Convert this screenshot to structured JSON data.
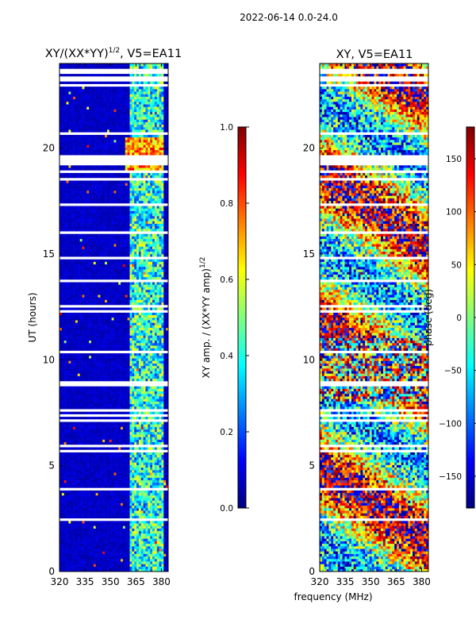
{
  "figure_title": "2022-06-14 0.0-24.0",
  "xlabel_shared": "frequency (MHz)",
  "colors": {
    "jet": [
      "#00007f",
      "#0000ff",
      "#007fff",
      "#00ffff",
      "#7fff7f",
      "#ffff00",
      "#ff7f00",
      "#ff0000",
      "#7f0000"
    ],
    "background": "#ffffff",
    "gap": "#ffffff"
  },
  "chart_data": [
    {
      "type": "heatmap",
      "title": "XY/(XX*YY)^{1/2}, V5=EA11",
      "title_main": "XY/(XX*YY)",
      "title_sup": "1/2",
      "title_suffix": ", V5=EA11",
      "xlabel": "",
      "ylabel": "UT (hours)",
      "xlim": [
        320,
        384
      ],
      "ylim": [
        0,
        24
      ],
      "xticks": [
        320,
        335,
        350,
        365,
        380
      ],
      "yticks": [
        0,
        5,
        10,
        15,
        20
      ],
      "colorbar": {
        "label": "XY amp. / (XX*YY amp)^{1/2}",
        "label_main": "XY amp. / (XX*YY amp)",
        "label_sup": "1/2",
        "range": [
          0.0,
          1.0
        ],
        "ticks": [
          "0.0",
          "0.2",
          "0.4",
          "0.6",
          "0.8",
          "1.0"
        ],
        "tick_values": [
          0.0,
          0.2,
          0.4,
          0.6,
          0.8,
          1.0
        ]
      },
      "description": "amplitude mostly near 0 (dark blue); elevated 0.2-0.6 for frequencies 362-381 MHz; bright patch ~0.6-0.9 near 19-20 h at 360-380 MHz"
    },
    {
      "type": "heatmap",
      "title": "XY, V5=EA11",
      "xlabel": "frequency (MHz)",
      "ylabel": "",
      "xlim": [
        320,
        384
      ],
      "ylim": [
        0,
        24
      ],
      "xticks": [
        320,
        335,
        350,
        365,
        380
      ],
      "yticks": [
        0,
        5,
        10,
        15,
        20
      ],
      "colorbar": {
        "label": "phase (deg)",
        "range": [
          -180,
          180
        ],
        "ticks": [
          "−150",
          "−100",
          "−50",
          "0",
          "50",
          "100",
          "150"
        ],
        "tick_values": [
          -150,
          -100,
          -50,
          0,
          50,
          100,
          150
        ]
      },
      "description": "phase noisy across band, mostly 0 to 150 deg with blue/cyan bands; white horizontal gaps where data flagged"
    }
  ]
}
